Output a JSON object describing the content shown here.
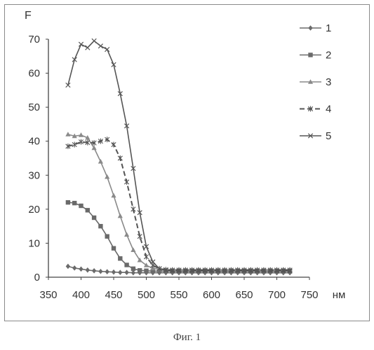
{
  "caption": "Фиг. 1",
  "chart_data": {
    "type": "line",
    "ylabel": "F",
    "xunit": "нм",
    "xlim": [
      350,
      750
    ],
    "ylim": [
      0,
      70
    ],
    "xticks": [
      350,
      400,
      450,
      500,
      550,
      600,
      650,
      700,
      750
    ],
    "yticks": [
      0,
      10,
      20,
      30,
      40,
      50,
      60,
      70
    ],
    "grid": false,
    "legend_position": "top-right",
    "x": [
      380,
      390,
      400,
      410,
      420,
      430,
      440,
      450,
      460,
      470,
      480,
      490,
      500,
      510,
      520,
      530,
      540,
      550,
      560,
      570,
      580,
      590,
      600,
      610,
      620,
      630,
      640,
      650,
      660,
      670,
      680,
      690,
      700,
      710,
      720
    ],
    "series": [
      {
        "name": "1",
        "marker": "diamond",
        "dash": "solid",
        "color": "#6a6a6a",
        "values": [
          3.2,
          2.7,
          2.4,
          2.1,
          1.9,
          1.7,
          1.6,
          1.5,
          1.4,
          1.4,
          1.3,
          1.3,
          1.3,
          1.3,
          1.3,
          1.3,
          1.3,
          1.3,
          1.3,
          1.3,
          1.3,
          1.3,
          1.3,
          1.3,
          1.3,
          1.3,
          1.3,
          1.3,
          1.3,
          1.3,
          1.3,
          1.3,
          1.3,
          1.3,
          1.3
        ]
      },
      {
        "name": "2",
        "marker": "square",
        "dash": "solid",
        "color": "#6a6a6a",
        "values": [
          22,
          21.8,
          21,
          19.7,
          17.5,
          15,
          12,
          8.5,
          5.5,
          3.6,
          2.5,
          2,
          1.9,
          1.8,
          1.8,
          1.8,
          1.8,
          1.8,
          1.8,
          1.8,
          1.8,
          1.8,
          1.8,
          1.8,
          1.8,
          1.8,
          1.8,
          1.8,
          1.8,
          1.8,
          1.8,
          1.8,
          1.8,
          1.8,
          1.8
        ]
      },
      {
        "name": "3",
        "marker": "triangle",
        "dash": "solid",
        "color": "#8a8a8a",
        "values": [
          42,
          41.5,
          41.8,
          41,
          38,
          34,
          29.5,
          24,
          18,
          12.5,
          8,
          5,
          3.5,
          2.6,
          2.3,
          2.2,
          2.2,
          2.2,
          2.2,
          2.2,
          2.2,
          2.2,
          2.2,
          2.2,
          2.2,
          2.2,
          2.2,
          2.2,
          2.2,
          2.2,
          2.2,
          2.2,
          2.2,
          2.2,
          2.2
        ]
      },
      {
        "name": "4",
        "marker": "asterisk",
        "dash": "dashed",
        "color": "#555555",
        "values": [
          38.5,
          39,
          39.8,
          39.6,
          39.5,
          40,
          40.5,
          39,
          35,
          28,
          20,
          12,
          6,
          3.5,
          2.5,
          2.2,
          2.1,
          2.1,
          2.1,
          2.1,
          2.1,
          2.1,
          2.1,
          2.1,
          2.1,
          2.1,
          2.1,
          2.1,
          2.1,
          2.1,
          2.1,
          2.1,
          2.1,
          2.1,
          2.1
        ]
      },
      {
        "name": "5",
        "marker": "cross",
        "dash": "solid",
        "color": "#555555",
        "values": [
          56.5,
          64,
          68.5,
          67.5,
          69.5,
          68,
          67,
          62.5,
          54,
          44.5,
          32,
          19,
          9,
          4.5,
          2.5,
          2,
          1.8,
          1.8,
          1.8,
          1.8,
          1.8,
          1.8,
          1.8,
          1.8,
          1.8,
          1.8,
          1.8,
          1.8,
          1.8,
          1.8,
          1.8,
          1.8,
          1.8,
          1.8,
          1.8
        ]
      }
    ]
  }
}
